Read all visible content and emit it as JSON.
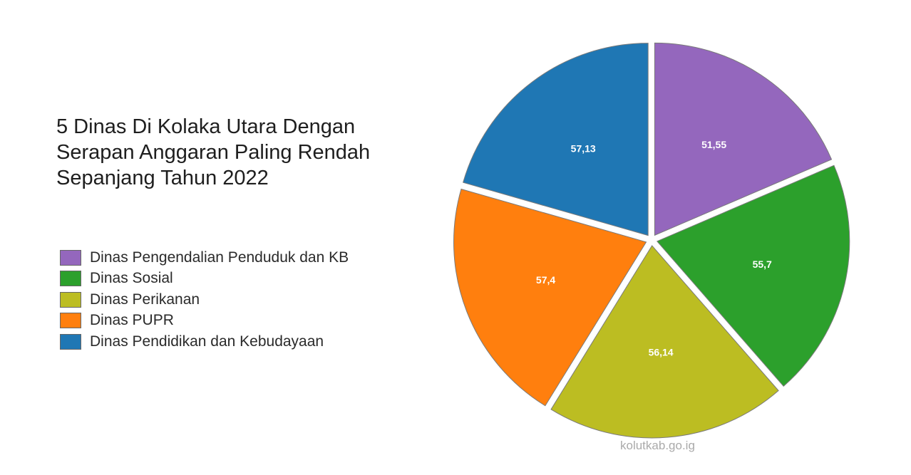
{
  "title_lines": [
    "5 Dinas Di Kolaka Utara Dengan",
    "Serapan Anggaran Paling Rendah",
    "Sepanjang Tahun 2022"
  ],
  "watermark": "kolutkab.go.ig",
  "chart_data": {
    "type": "pie",
    "title": "5 Dinas Di Kolaka Utara Dengan Serapan Anggaran Paling Rendah Sepanjang Tahun 2022",
    "legend_position": "left",
    "slices": [
      {
        "label": "Dinas Pengendalian Penduduk dan KB",
        "value": 51.55,
        "display": "51,55",
        "color": "#9467bd"
      },
      {
        "label": "Dinas Sosial",
        "value": 55.7,
        "display": "55,7",
        "color": "#2ca02c"
      },
      {
        "label": "Dinas Perikanan",
        "value": 56.14,
        "display": "56,14",
        "color": "#bcbd22"
      },
      {
        "label": "Dinas PUPR",
        "value": 57.4,
        "display": "57,4",
        "color": "#ff7f0e"
      },
      {
        "label": "Dinas Pendidikan dan Kebudayaan",
        "value": 57.13,
        "display": "57,13",
        "color": "#1f77b4"
      }
    ]
  }
}
